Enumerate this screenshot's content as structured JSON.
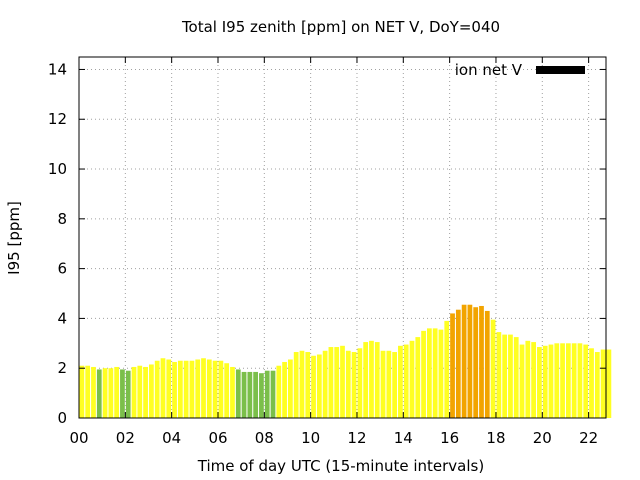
{
  "chart_data": {
    "type": "bar",
    "title": "Total I95 zenith [ppm] on NET V, DoY=040",
    "xlabel": "Time of day UTC (15-minute intervals)",
    "ylabel": "I95 [ppm]",
    "ylim": [
      0,
      14.5
    ],
    "xlim": [
      0,
      22.75
    ],
    "yticks": [
      "0",
      "2",
      "4",
      "6",
      "8",
      "10",
      "12",
      "14"
    ],
    "xticks": [
      "00",
      "02",
      "04",
      "06",
      "08",
      "10",
      "12",
      "14",
      "16",
      "18",
      "20",
      "22"
    ],
    "grid": true,
    "legend": {
      "label": "ion net V",
      "color": "#000000",
      "position": "top-right"
    },
    "interval_hours": 0.25,
    "colors": {
      "green": "#7bbf4a",
      "yellow": "#ffff22",
      "orange": "#f2a400"
    },
    "values": [
      2.1,
      2.1,
      2.05,
      1.95,
      2.0,
      2.0,
      2.05,
      1.95,
      1.9,
      2.05,
      2.1,
      2.05,
      2.15,
      2.3,
      2.4,
      2.35,
      2.25,
      2.3,
      2.3,
      2.3,
      2.35,
      2.4,
      2.35,
      2.3,
      2.3,
      2.2,
      2.05,
      1.95,
      1.85,
      1.85,
      1.85,
      1.8,
      1.9,
      1.9,
      2.1,
      2.25,
      2.35,
      2.65,
      2.7,
      2.65,
      2.5,
      2.55,
      2.7,
      2.85,
      2.85,
      2.9,
      2.7,
      2.65,
      2.8,
      3.05,
      3.1,
      3.05,
      2.7,
      2.7,
      2.65,
      2.9,
      2.95,
      3.1,
      3.25,
      3.5,
      3.6,
      3.6,
      3.55,
      3.9,
      4.2,
      4.35,
      4.55,
      4.55,
      4.45,
      4.5,
      4.3,
      3.95,
      3.45,
      3.35,
      3.35,
      3.25,
      2.95,
      3.1,
      3.05,
      2.85,
      2.9,
      2.95,
      3.0,
      3.0,
      3.0,
      3.0,
      3.0,
      2.95,
      2.8,
      2.65,
      2.75,
      2.75
    ],
    "bar_colors": [
      "yellow",
      "yellow",
      "yellow",
      "green",
      "yellow",
      "yellow",
      "yellow",
      "green",
      "green",
      "yellow",
      "yellow",
      "yellow",
      "yellow",
      "yellow",
      "yellow",
      "yellow",
      "yellow",
      "yellow",
      "yellow",
      "yellow",
      "yellow",
      "yellow",
      "yellow",
      "yellow",
      "yellow",
      "yellow",
      "yellow",
      "green",
      "green",
      "green",
      "green",
      "green",
      "green",
      "green",
      "yellow",
      "yellow",
      "yellow",
      "yellow",
      "yellow",
      "yellow",
      "yellow",
      "yellow",
      "yellow",
      "yellow",
      "yellow",
      "yellow",
      "yellow",
      "yellow",
      "yellow",
      "yellow",
      "yellow",
      "yellow",
      "yellow",
      "yellow",
      "yellow",
      "yellow",
      "yellow",
      "yellow",
      "yellow",
      "yellow",
      "yellow",
      "yellow",
      "yellow",
      "yellow",
      "orange",
      "orange",
      "orange",
      "orange",
      "orange",
      "orange",
      "orange",
      "yellow",
      "yellow",
      "yellow",
      "yellow",
      "yellow",
      "yellow",
      "yellow",
      "yellow",
      "yellow",
      "yellow",
      "yellow",
      "yellow",
      "yellow",
      "yellow",
      "yellow",
      "yellow",
      "yellow",
      "yellow",
      "yellow",
      "yellow",
      "yellow"
    ]
  }
}
